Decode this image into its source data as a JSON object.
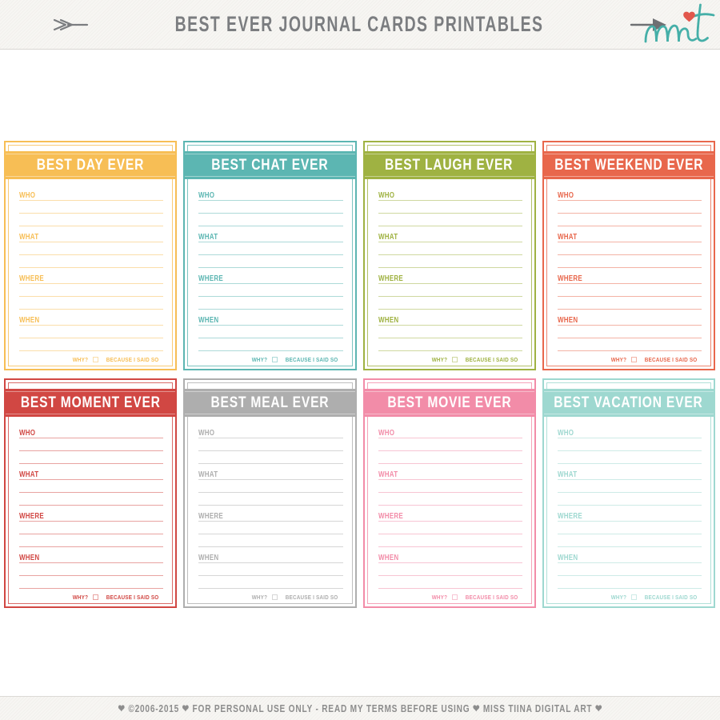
{
  "header": {
    "title": "BEST EVER JOURNAL CARDS PRINTABLES",
    "text_color": "#7B7D80",
    "background_color": "#F7F6F3",
    "logo": {
      "name": "miss-tiina-mt-monogram",
      "color": "#45AFA8",
      "heart_color": "#E2574C"
    }
  },
  "cards": [
    {
      "title": "BEST DAY EVER",
      "color": "#F7BE55",
      "light_color": "#FBDEAA"
    },
    {
      "title": "BEST CHAT EVER",
      "color": "#5CB6B2",
      "light_color": "#ADDAD8"
    },
    {
      "title": "BEST LAUGH EVER",
      "color": "#9FB242",
      "light_color": "#CFD8A0"
    },
    {
      "title": "BEST WEEKEND EVER",
      "color": "#E8674C",
      "light_color": "#F3B3A5"
    },
    {
      "title": "BEST MOMENT EVER",
      "color": "#D14743",
      "light_color": "#E8A3A1"
    },
    {
      "title": "BEST MEAL EVER",
      "color": "#AEAEAE",
      "light_color": "#D6D6D6"
    },
    {
      "title": "BEST MOVIE EVER",
      "color": "#F28CA8",
      "light_color": "#F8C5D3"
    },
    {
      "title": "BEST VACATION EVER",
      "color": "#9ED8D0",
      "light_color": "#CEEBE7"
    }
  ],
  "card_fields": {
    "labels": [
      "WHO",
      "WHAT",
      "WHERE",
      "WHEN"
    ],
    "why_label": "WHY?",
    "why_suffix": "BECAUSE I SAID SO",
    "checkbox_state": "unchecked"
  },
  "footer": {
    "text": "❤  ©2006-2015  ❤  FOR PERSONAL USE ONLY - READ MY TERMS BEFORE USING  ❤  MISS TIINA DIGITAL ART  ❤",
    "text_color": "#8D8D8D"
  }
}
